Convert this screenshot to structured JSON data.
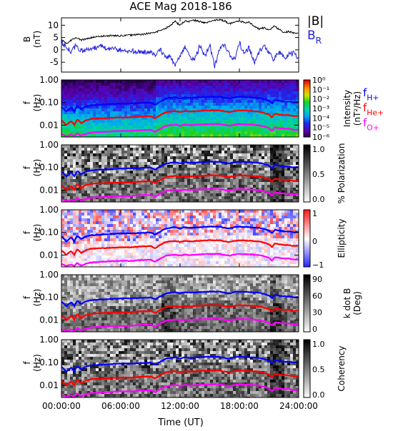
{
  "title": "ACE Mag 2018-186",
  "xlabel": "Time (UT)",
  "colors": {
    "B_total": "#000000",
    "B_R": "#2222dd",
    "f_Hplus": "#0000ff",
    "f_Heplus": "#ff0000",
    "f_Oplus": "#ff00ff"
  },
  "chart_data": [
    {
      "type": "line",
      "panel": "field",
      "ylabel": "B",
      "yunit": "(nT)",
      "ylim": [
        -9,
        13
      ],
      "yticks": [
        "10",
        "5",
        "0",
        "-5"
      ],
      "xlim": [
        0,
        24
      ],
      "x_tick_labels": [
        "00:00:00",
        "06:00:00",
        "12:00:00",
        "18:00:00",
        "24:00:00"
      ],
      "series": [
        {
          "name": "|B|",
          "key": "B_total",
          "x": [
            0,
            0.5,
            1,
            1.5,
            2,
            3,
            4,
            5,
            6,
            7,
            8,
            9,
            9.5,
            10,
            10.5,
            11,
            11.5,
            12,
            12.5,
            13,
            13.5,
            14,
            14.5,
            15,
            15.5,
            16,
            16.5,
            17,
            17.5,
            18,
            18.5,
            19,
            19.5,
            20,
            20.5,
            21,
            21.5,
            22,
            22.5,
            23,
            23.5,
            24
          ],
          "values": [
            4.2,
            2.5,
            4.0,
            5.0,
            4.0,
            5.0,
            5.5,
            5.8,
            5.7,
            6.0,
            6.2,
            6.8,
            7.0,
            8.0,
            8.5,
            10.0,
            11.5,
            10.0,
            11.8,
            11.5,
            12.0,
            11.5,
            11.0,
            11.5,
            12.0,
            12.2,
            11.8,
            10.5,
            11.5,
            11.8,
            11.0,
            11.3,
            9.5,
            8.5,
            9.0,
            8.0,
            9.5,
            8.5,
            7.0,
            7.5,
            6.8,
            7.0
          ]
        },
        {
          "name": "B",
          "subscript": "R",
          "key": "B_R",
          "x": [
            0,
            0.5,
            1,
            1.5,
            2,
            3,
            4,
            5,
            6,
            7,
            8,
            9,
            9.5,
            10,
            10.5,
            11,
            11.5,
            12,
            12.5,
            13,
            13.5,
            14,
            14.5,
            15,
            15.5,
            16,
            16.5,
            17,
            17.5,
            18,
            18.5,
            19,
            19.5,
            20,
            20.5,
            21,
            21.5,
            22,
            22.5,
            23,
            23.5,
            24
          ],
          "values": [
            3.5,
            1.0,
            -1.0,
            2.0,
            -0.5,
            0.5,
            1.5,
            0.5,
            0.0,
            -0.5,
            -1.0,
            -0.5,
            -2.0,
            0.0,
            -2.5,
            -3.0,
            -6.0,
            -2.0,
            1.0,
            -3.0,
            -4.0,
            1.5,
            -3.0,
            2.0,
            -6.5,
            0.5,
            2.5,
            -2.0,
            -4.0,
            3.0,
            -2.0,
            1.0,
            -5.0,
            -1.0,
            2.0,
            -1.5,
            -4.0,
            -1.0,
            -3.0,
            -2.0,
            -1.5,
            -4.0
          ]
        }
      ]
    },
    {
      "type": "heatmap",
      "panel": "power",
      "ylabel": "f",
      "yunit": "(Hz)",
      "ylim": [
        0.003,
        1.0
      ],
      "yticks": [
        "1.00",
        "0.10",
        "0.01"
      ],
      "colorbar": {
        "label": "Intensity",
        "unit": "(nT²/Hz)",
        "scale": "log",
        "range": [
          1e-06,
          1
        ],
        "tick_labels": [
          "10⁰",
          "10⁻¹",
          "10⁻²",
          "10⁻³",
          "10⁻⁴",
          "10⁻⁵",
          "10⁻⁶"
        ],
        "colormap": "rainbow"
      }
    },
    {
      "type": "heatmap",
      "panel": "polarization",
      "ylabel": "f",
      "yunit": "(Hz)",
      "yticks": [
        "1.00",
        "0.10",
        "0.01"
      ],
      "colorbar": {
        "label": "% Polarization",
        "range": [
          0,
          1
        ],
        "tick_labels": [
          "1.0",
          "0.5",
          "0.0"
        ],
        "colormap": "gray"
      }
    },
    {
      "type": "heatmap",
      "panel": "ellipticity",
      "ylabel": "f",
      "yunit": "(Hz)",
      "yticks": [
        "1.00",
        "0.10",
        "0.01"
      ],
      "colorbar": {
        "label": "Ellipticity",
        "range": [
          -1,
          1
        ],
        "tick_labels": [
          "1",
          "0",
          "−1"
        ],
        "colormap": "bwr"
      }
    },
    {
      "type": "heatmap",
      "panel": "kdotb",
      "ylabel": "f",
      "yunit": "(Hz)",
      "yticks": [
        "1.00",
        "0.10",
        "0.01"
      ],
      "colorbar": {
        "label": "k dot B",
        "unit": "(Deg)",
        "range": [
          0,
          90
        ],
        "tick_labels": [
          "90",
          "60",
          "30",
          "0"
        ],
        "colormap": "gray"
      }
    },
    {
      "type": "heatmap",
      "panel": "coherency",
      "ylabel": "f",
      "yunit": "(Hz)",
      "yticks": [
        "1.00",
        "0.10",
        "0.01"
      ],
      "colorbar": {
        "label": "Coherency",
        "range": [
          0,
          1
        ],
        "tick_labels": [
          "1.0",
          "0.5",
          "0.0"
        ],
        "colormap": "gray"
      }
    }
  ],
  "gyrofrequency_legend": [
    {
      "label": "f",
      "subscript": "H+",
      "key": "f_Hplus"
    },
    {
      "label": "f",
      "subscript": "He+",
      "key": "f_Heplus"
    },
    {
      "label": "f",
      "subscript": "O+",
      "key": "f_Oplus"
    }
  ],
  "gyrofrequency_lines": {
    "x": [
      0,
      0.5,
      1,
      1.3,
      1.6,
      2,
      2.4,
      3,
      4,
      5,
      6,
      7,
      8,
      9,
      9.5,
      10,
      10.3,
      10.6,
      11,
      11.5,
      12,
      12.5,
      13,
      14,
      15,
      16,
      16.5,
      17,
      17.5,
      18,
      19,
      20,
      21,
      21.3,
      21.6,
      22,
      22.5,
      23,
      23.5,
      24
    ],
    "f_Hplus": [
      0.065,
      0.04,
      0.06,
      0.04,
      0.07,
      0.05,
      0.065,
      0.075,
      0.08,
      0.085,
      0.09,
      0.09,
      0.095,
      0.1,
      0.08,
      0.11,
      0.13,
      0.15,
      0.16,
      0.17,
      0.15,
      0.17,
      0.16,
      0.17,
      0.18,
      0.18,
      0.16,
      0.15,
      0.17,
      0.18,
      0.17,
      0.16,
      0.12,
      0.09,
      0.13,
      0.12,
      0.11,
      0.11,
      0.1,
      0.105
    ],
    "f_Heplus": [
      0.016,
      0.01,
      0.015,
      0.01,
      0.018,
      0.012,
      0.016,
      0.019,
      0.02,
      0.021,
      0.022,
      0.022,
      0.024,
      0.025,
      0.02,
      0.028,
      0.033,
      0.038,
      0.04,
      0.042,
      0.038,
      0.042,
      0.04,
      0.043,
      0.045,
      0.045,
      0.04,
      0.038,
      0.042,
      0.045,
      0.043,
      0.04,
      0.03,
      0.022,
      0.032,
      0.03,
      0.028,
      0.028,
      0.025,
      0.026
    ],
    "f_Oplus": [
      0.004,
      0.0032,
      0.0038,
      0.0032,
      0.0045,
      0.0034,
      0.004,
      0.0047,
      0.005,
      0.0053,
      0.0055,
      0.0055,
      0.006,
      0.0062,
      0.005,
      0.007,
      0.0082,
      0.0094,
      0.01,
      0.0105,
      0.0095,
      0.0105,
      0.01,
      0.0107,
      0.0112,
      0.0112,
      0.01,
      0.0095,
      0.0105,
      0.0112,
      0.0107,
      0.01,
      0.0075,
      0.0055,
      0.008,
      0.0075,
      0.007,
      0.007,
      0.0062,
      0.0065
    ]
  }
}
